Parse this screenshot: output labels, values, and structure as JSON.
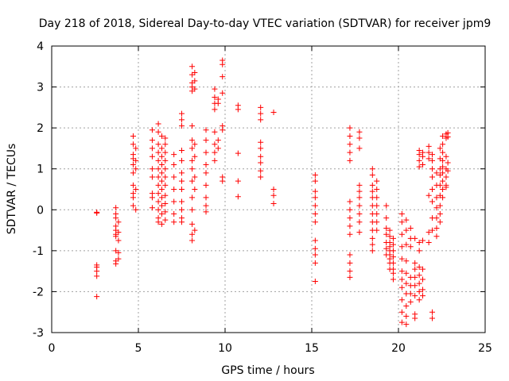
{
  "chart_data": {
    "type": "scatter",
    "title": "Day 218 of 2018, Sidereal Day-to-day VTEC variation (SDTVAR) for receiver jpm9",
    "xlabel": "GPS time / hours",
    "ylabel": "SDTVAR / TECUs",
    "xlim": [
      0,
      25
    ],
    "ylim": [
      -3,
      4
    ],
    "xticks": [
      0,
      5,
      10,
      15,
      20,
      25
    ],
    "yticks": [
      -3,
      -2,
      -1,
      0,
      1,
      2,
      3,
      4
    ],
    "grid": true,
    "marker": "+",
    "color": "#ff0000",
    "clusters": [
      {
        "x": 2.6,
        "ys": [
          -0.08,
          -0.06,
          -1.35,
          -1.4,
          -1.5,
          -1.62,
          -2.12
        ]
      },
      {
        "x": 3.7,
        "ys": [
          0.05,
          -0.1,
          -0.2,
          -0.4,
          -0.5,
          -0.6,
          -0.65,
          -1.0,
          -1.25,
          -1.32
        ]
      },
      {
        "x": 3.85,
        "ys": [
          -0.3,
          -0.55,
          -0.75,
          -1.05,
          -1.2
        ]
      },
      {
        "x": 4.7,
        "ys": [
          1.8,
          1.6,
          1.35,
          1.25,
          1.1,
          0.9,
          0.6,
          0.4,
          0.3,
          0.1
        ]
      },
      {
        "x": 4.85,
        "ys": [
          1.5,
          1.2,
          1.0,
          0.5,
          0.0
        ]
      },
      {
        "x": 5.8,
        "ys": [
          1.95,
          1.7,
          1.5,
          1.3,
          1.0,
          0.8,
          0.4,
          0.3,
          0.05
        ]
      },
      {
        "x": 6.15,
        "ys": [
          2.1,
          1.9,
          1.6,
          1.4,
          1.2,
          1.0,
          0.8,
          0.6,
          0.4,
          0.2,
          0.0,
          -0.2,
          -0.3
        ]
      },
      {
        "x": 6.35,
        "ys": [
          1.8,
          1.5,
          1.3,
          1.1,
          0.9,
          0.7,
          0.5,
          0.3,
          0.1,
          -0.1,
          -0.35
        ]
      },
      {
        "x": 6.55,
        "ys": [
          1.75,
          1.6,
          1.4,
          1.2,
          1.0,
          0.8,
          0.6,
          0.35,
          0.15,
          -0.05,
          -0.25
        ]
      },
      {
        "x": 7.05,
        "ys": [
          1.35,
          1.1,
          0.8,
          0.5,
          0.2,
          -0.1,
          -0.3
        ]
      },
      {
        "x": 7.5,
        "ys": [
          2.35,
          2.2,
          2.05,
          1.45,
          1.2,
          0.9,
          0.7,
          0.5,
          0.2,
          0.0,
          -0.2,
          -0.3
        ]
      },
      {
        "x": 8.1,
        "ys": [
          3.5,
          3.3,
          3.1,
          3.0,
          2.9,
          2.05,
          1.7,
          1.5,
          1.2,
          1.0,
          0.7,
          0.3,
          0.0,
          -0.35,
          -0.6,
          -0.75
        ]
      },
      {
        "x": 8.25,
        "ys": [
          3.35,
          3.15,
          2.95,
          1.6,
          1.3,
          0.8,
          0.5,
          -0.5
        ]
      },
      {
        "x": 8.9,
        "ys": [
          1.95,
          1.7,
          1.4,
          1.1,
          0.9,
          0.6,
          0.3,
          0.1,
          -0.05
        ]
      },
      {
        "x": 9.4,
        "ys": [
          2.95,
          2.75,
          2.6,
          2.45,
          1.9,
          1.6,
          1.4,
          1.2
        ]
      },
      {
        "x": 9.6,
        "ys": [
          2.7,
          2.6,
          1.7,
          1.5
        ]
      },
      {
        "x": 9.85,
        "ys": [
          3.65,
          3.55,
          3.25,
          2.85,
          2.05,
          1.95,
          0.8,
          0.7
        ]
      },
      {
        "x": 10.75,
        "ys": [
          2.55,
          2.45,
          1.38,
          0.7,
          0.32
        ]
      },
      {
        "x": 12.05,
        "ys": [
          2.5,
          2.35,
          2.2,
          1.65,
          1.5,
          1.3,
          1.15,
          0.95,
          0.8
        ]
      },
      {
        "x": 12.8,
        "ys": [
          2.38,
          0.5,
          0.35,
          0.15
        ]
      },
      {
        "x": 15.2,
        "ys": [
          0.85,
          0.7,
          0.45,
          0.3,
          0.1,
          -0.1,
          -0.3,
          -0.75,
          -0.95,
          -1.1,
          -1.3,
          -1.75
        ]
      },
      {
        "x": 17.2,
        "ys": [
          2.0,
          1.8,
          1.6,
          1.4,
          1.2,
          0.2,
          0.0,
          -0.2,
          -0.4,
          -0.6,
          -1.1,
          -1.3,
          -1.5,
          -1.65
        ]
      },
      {
        "x": 17.75,
        "ys": [
          1.9,
          1.75,
          1.5,
          0.6,
          0.45,
          0.3,
          0.1,
          -0.1,
          -0.3,
          -0.55
        ]
      },
      {
        "x": 18.5,
        "ys": [
          1.0,
          0.85,
          0.6,
          0.45,
          0.3,
          0.1,
          -0.1,
          -0.3,
          -0.5,
          -0.7,
          -0.85,
          -1.0
        ]
      },
      {
        "x": 18.75,
        "ys": [
          0.7,
          0.5,
          0.3,
          0.1,
          -0.1,
          -0.3,
          -0.5
        ]
      },
      {
        "x": 19.3,
        "ys": [
          0.1,
          -0.2,
          -0.45,
          -0.6,
          -0.8,
          -0.95,
          -1.1
        ]
      },
      {
        "x": 19.5,
        "ys": [
          -0.5,
          -0.65,
          -0.8,
          -0.9,
          -1.0,
          -1.1,
          -1.2,
          -1.3,
          -1.45
        ]
      },
      {
        "x": 19.7,
        "ys": [
          -0.7,
          -0.85,
          -1.0,
          -1.15,
          -1.3,
          -1.45,
          -1.55,
          -1.7
        ]
      },
      {
        "x": 20.2,
        "ys": [
          -0.1,
          -0.3,
          -0.6,
          -0.9,
          -1.2,
          -1.5,
          -1.7,
          -1.9,
          -2.2,
          -2.5,
          -2.75
        ]
      },
      {
        "x": 20.45,
        "ys": [
          -0.25,
          -0.5,
          -0.85,
          -1.25,
          -1.55,
          -1.8,
          -2.05,
          -2.35,
          -2.6,
          -2.8
        ]
      },
      {
        "x": 20.7,
        "ys": [
          -0.45,
          -0.7,
          -0.9,
          -1.65,
          -1.85,
          -2.05,
          -2.25
        ]
      },
      {
        "x": 20.95,
        "ys": [
          -0.7,
          -1.3,
          -1.45,
          -1.65,
          -1.85,
          -2.1,
          -2.55,
          -2.65
        ]
      },
      {
        "x": 21.2,
        "ys": [
          1.45,
          1.35,
          1.2,
          1.05,
          -0.8,
          -1.0,
          -1.4,
          -1.6,
          -1.8,
          -2.0,
          -2.2
        ]
      },
      {
        "x": 21.4,
        "ys": [
          1.4,
          1.3,
          1.1,
          -0.75,
          -1.45,
          -1.7,
          -1.95,
          -2.1
        ]
      },
      {
        "x": 21.75,
        "ys": [
          1.55,
          1.4,
          1.25,
          0.35,
          -0.55,
          -0.8
        ]
      },
      {
        "x": 21.95,
        "ys": [
          1.35,
          1.2,
          1.0,
          0.8,
          0.5,
          0.2,
          -0.2,
          -0.5,
          -2.5,
          -2.65
        ]
      },
      {
        "x": 22.2,
        "ys": [
          0.9,
          0.6,
          0.3,
          0.05,
          -0.2,
          -0.45,
          -0.65
        ]
      },
      {
        "x": 22.4,
        "ys": [
          1.5,
          1.25,
          1.0,
          0.85,
          0.6,
          0.35,
          0.1,
          -0.1,
          -0.3
        ]
      },
      {
        "x": 22.55,
        "ys": [
          1.8,
          1.6,
          1.4,
          1.2,
          1.05,
          0.9,
          0.7,
          0.5,
          0.3
        ]
      },
      {
        "x": 22.75,
        "ys": [
          1.85,
          1.75,
          1.3,
          1.0,
          0.8,
          0.6,
          0.55
        ]
      },
      {
        "x": 22.85,
        "ys": [
          1.88,
          1.78,
          1.15,
          0.95
        ]
      }
    ]
  }
}
